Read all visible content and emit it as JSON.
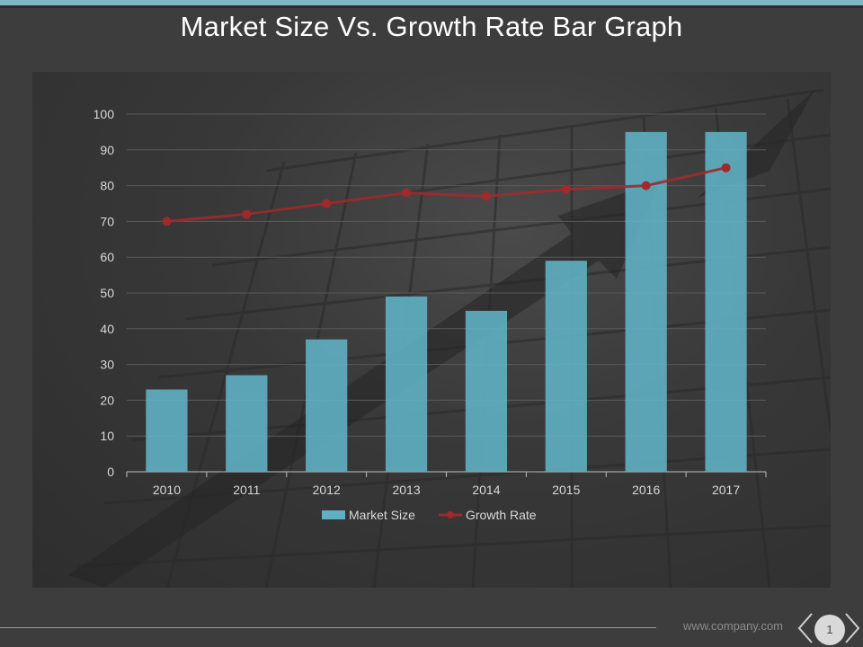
{
  "slide": {
    "title": "Market Size Vs. Growth Rate Bar Graph",
    "footer_url": "www.company.com",
    "page_number": "1"
  },
  "colors": {
    "bar": "#5fb0c4",
    "line": "#9e2a2b",
    "axis_text": "#d8d8d8",
    "grid": "#5a5a5a"
  },
  "chart_data": {
    "type": "bar",
    "title": "",
    "xlabel": "",
    "ylabel": "",
    "categories": [
      "2010",
      "2011",
      "2012",
      "2013",
      "2014",
      "2015",
      "2016",
      "2017"
    ],
    "series": [
      {
        "name": "Market Size",
        "kind": "bar",
        "values": [
          23,
          27,
          37,
          49,
          45,
          59,
          95,
          95
        ]
      },
      {
        "name": "Growth Rate",
        "kind": "line",
        "values": [
          70,
          72,
          75,
          78,
          77,
          79,
          80,
          85
        ]
      }
    ],
    "ylim": [
      0,
      100
    ],
    "yticks": [
      "0",
      "10",
      "20",
      "30",
      "40",
      "50",
      "60",
      "70",
      "80",
      "90",
      "100"
    ],
    "grid": true,
    "legend": "bottom"
  }
}
